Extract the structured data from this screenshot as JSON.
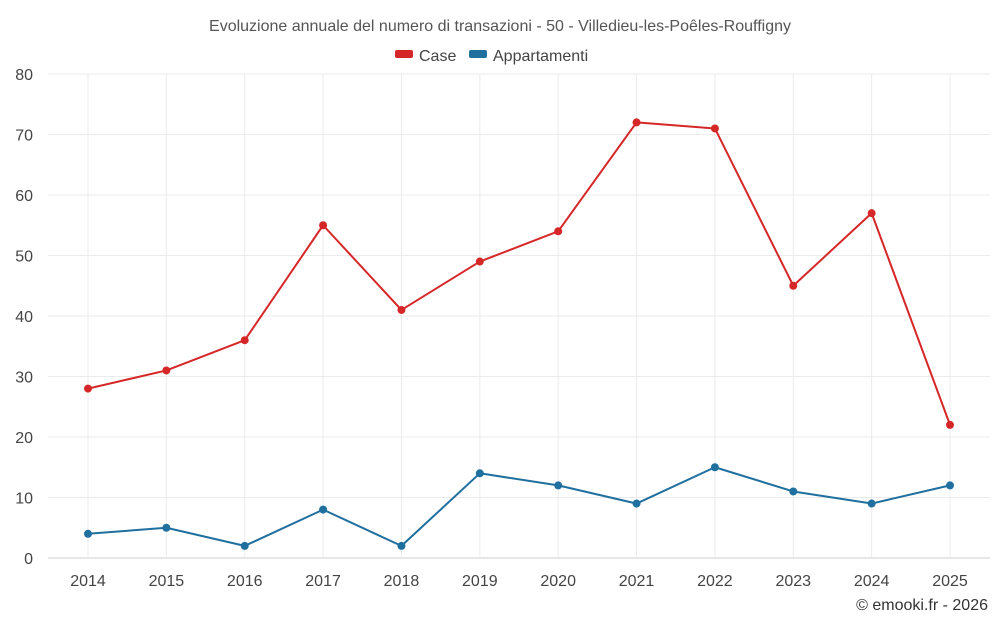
{
  "chart_data": {
    "type": "line",
    "title": "Evoluzione annuale del numero di transazioni - 50 - Villedieu-les-Poêles-Rouffigny",
    "xlabel": "",
    "ylabel": "",
    "categories": [
      "2014",
      "2015",
      "2016",
      "2017",
      "2018",
      "2019",
      "2020",
      "2021",
      "2022",
      "2023",
      "2024",
      "2025"
    ],
    "ylim": [
      0,
      80
    ],
    "yticks": [
      "0",
      "10",
      "20",
      "30",
      "40",
      "50",
      "60",
      "70",
      "80"
    ],
    "grid": true,
    "legend_position": "top-center",
    "series": [
      {
        "name": "Case",
        "color": "#d62728",
        "values": [
          28,
          31,
          36,
          55,
          41,
          49,
          54,
          72,
          71,
          45,
          57,
          22
        ]
      },
      {
        "name": "Appartamenti",
        "color": "#1f6f9f",
        "values": [
          4,
          5,
          2,
          8,
          2,
          14,
          12,
          9,
          15,
          11,
          9,
          12
        ]
      }
    ]
  },
  "credit": "© emooki.fr - 2026"
}
